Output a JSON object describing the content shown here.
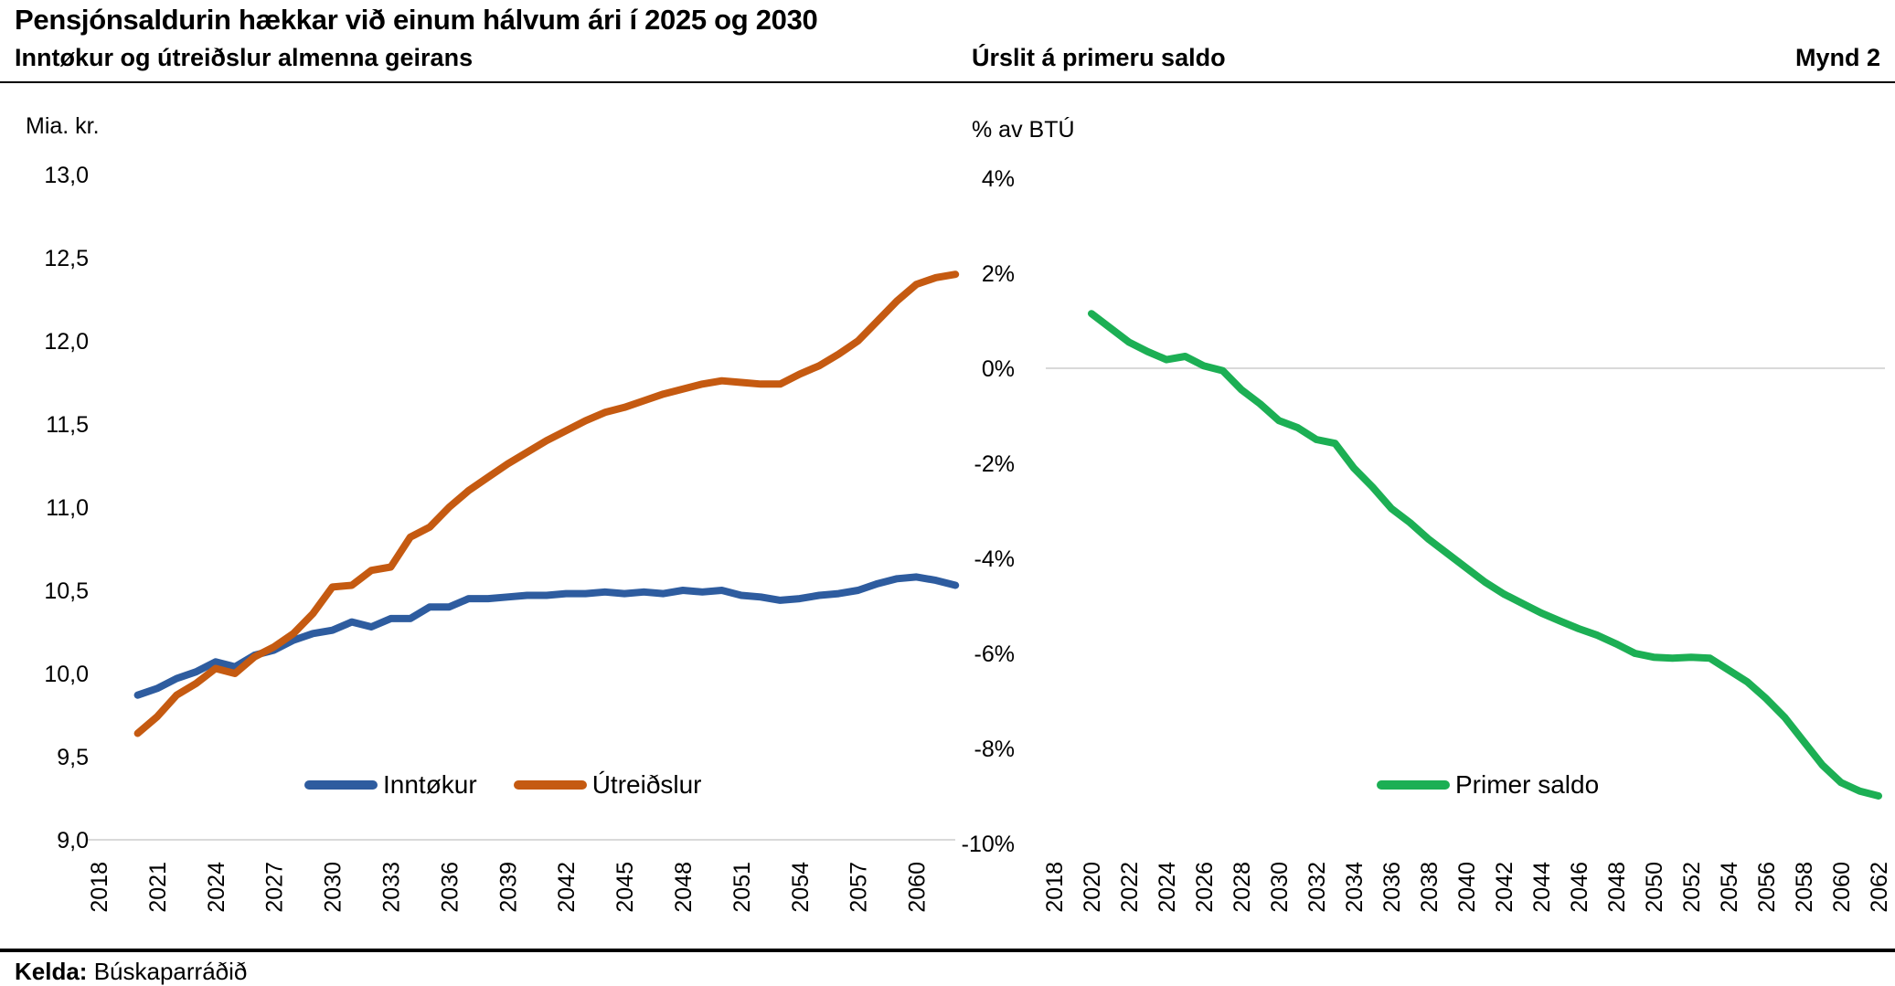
{
  "header": {
    "title": "Pensjónsaldurin hækkar við einum hálvum ári í 2025 og 2030",
    "left_subtitle": "Inntøkur og útreiðslur almenna geirans",
    "right_subtitle": "Úrslit á primeru saldo",
    "figure_label": "Mynd 2"
  },
  "footer": {
    "source_label": "Kelda:",
    "source_name": "Búskaparráðið"
  },
  "colors": {
    "income_blue": "#2E5C9F",
    "expenditure_orange": "#C55A11",
    "primary_green": "#1CAF54",
    "gridline_gray": "#D9D9D9",
    "text_black": "#000000"
  },
  "chart_data": [
    {
      "id": "left",
      "type": "line",
      "title": "Inntøkur og útreiðslur almenna geirans",
      "unit_label": "Mia. kr.",
      "ylim": [
        9.0,
        13.0
      ],
      "y_ticks": [
        {
          "value": 13.0,
          "label": "13,0"
        },
        {
          "value": 12.5,
          "label": "12,5"
        },
        {
          "value": 12.0,
          "label": "12,0"
        },
        {
          "value": 11.5,
          "label": "11,5"
        },
        {
          "value": 11.0,
          "label": "11,0"
        },
        {
          "value": 10.5,
          "label": "10,5"
        },
        {
          "value": 10.0,
          "label": "10,0"
        },
        {
          "value": 9.5,
          "label": "9,5"
        },
        {
          "value": 9.0,
          "label": "9,0"
        }
      ],
      "x_range": [
        2018,
        2062
      ],
      "x_tick_years": [
        2018,
        2021,
        2024,
        2027,
        2030,
        2033,
        2036,
        2039,
        2042,
        2045,
        2048,
        2051,
        2054,
        2057,
        2060
      ],
      "gridlines": [
        9.0
      ],
      "grid": "baseline only, light gray",
      "legend_position": "inside bottom center",
      "series": [
        {
          "name": "Inntøkur",
          "color": "#2E5C9F",
          "start_year": 2020,
          "values": [
            9.87,
            9.91,
            9.97,
            10.01,
            10.07,
            10.04,
            10.11,
            10.14,
            10.2,
            10.24,
            10.26,
            10.31,
            10.28,
            10.33,
            10.33,
            10.4,
            10.4,
            10.45,
            10.45,
            10.46,
            10.47,
            10.47,
            10.48,
            10.48,
            10.49,
            10.48,
            10.49,
            10.48,
            10.5,
            10.49,
            10.5,
            10.47,
            10.46,
            10.44,
            10.45,
            10.47,
            10.48,
            10.5,
            10.54,
            10.57,
            10.58,
            10.56,
            10.53
          ]
        },
        {
          "name": "Útreiðslur",
          "color": "#C55A11",
          "start_year": 2020,
          "values": [
            9.64,
            9.74,
            9.87,
            9.94,
            10.03,
            10.0,
            10.1,
            10.16,
            10.24,
            10.36,
            10.52,
            10.53,
            10.62,
            10.64,
            10.82,
            10.88,
            11.0,
            11.1,
            11.18,
            11.26,
            11.33,
            11.4,
            11.46,
            11.52,
            11.57,
            11.6,
            11.64,
            11.68,
            11.71,
            11.74,
            11.76,
            11.75,
            11.74,
            11.74,
            11.8,
            11.85,
            11.92,
            12.0,
            12.12,
            12.24,
            12.34,
            12.38,
            12.4
          ]
        }
      ]
    },
    {
      "id": "right",
      "type": "line",
      "title": "Úrslit á primeru saldo",
      "unit_label": "% av BTÚ",
      "ylim": [
        -10,
        4
      ],
      "y_ticks": [
        {
          "value": 4,
          "label": "4%"
        },
        {
          "value": 2,
          "label": "2%"
        },
        {
          "value": 0,
          "label": "0%"
        },
        {
          "value": -2,
          "label": "-2%"
        },
        {
          "value": -4,
          "label": "-4%"
        },
        {
          "value": -6,
          "label": "-6%"
        },
        {
          "value": -8,
          "label": "-8%"
        },
        {
          "value": -10,
          "label": "-10%"
        }
      ],
      "x_range": [
        2018,
        2062
      ],
      "x_tick_years": [
        2018,
        2020,
        2022,
        2024,
        2026,
        2028,
        2030,
        2032,
        2034,
        2036,
        2038,
        2040,
        2042,
        2044,
        2046,
        2048,
        2050,
        2052,
        2054,
        2056,
        2058,
        2060,
        2062
      ],
      "gridlines": [
        0
      ],
      "grid": "zero line only, light gray",
      "legend_position": "inside bottom center",
      "series": [
        {
          "name": "Primer saldo",
          "color": "#1CAF54",
          "start_year": 2020,
          "values": [
            1.15,
            0.85,
            0.55,
            0.35,
            0.18,
            0.25,
            0.05,
            -0.05,
            -0.45,
            -0.75,
            -1.1,
            -1.25,
            -1.5,
            -1.58,
            -2.1,
            -2.5,
            -2.95,
            -3.25,
            -3.6,
            -3.9,
            -4.2,
            -4.5,
            -4.75,
            -4.95,
            -5.15,
            -5.32,
            -5.48,
            -5.62,
            -5.8,
            -6.0,
            -6.08,
            -6.1,
            -6.08,
            -6.1,
            -6.35,
            -6.6,
            -6.95,
            -7.35,
            -7.85,
            -8.35,
            -8.72,
            -8.9,
            -9.0
          ]
        }
      ]
    }
  ]
}
